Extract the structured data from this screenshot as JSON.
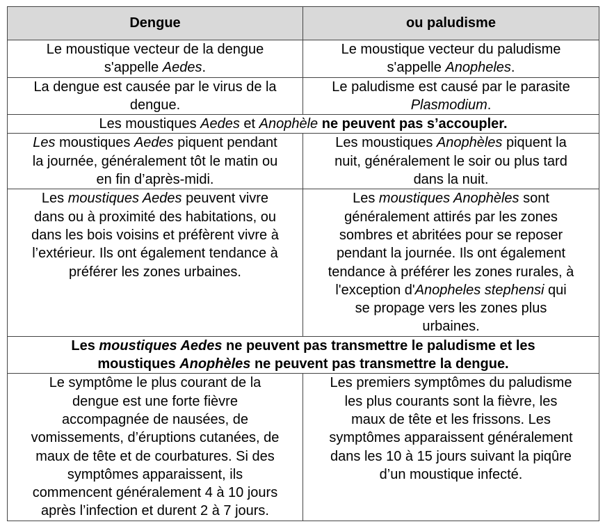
{
  "header": {
    "col1": "Dengue",
    "col2": "ou paludisme"
  },
  "rows": [
    {
      "type": "pair",
      "left": [
        [
          {
            "t": "Le moustique vecteur de la dengue"
          }
        ],
        [
          {
            "t": "s'appelle "
          },
          {
            "t": "Aedes",
            "s": "i"
          },
          {
            "t": "."
          }
        ]
      ],
      "right": [
        [
          {
            "t": "Le moustique vecteur du paludisme"
          }
        ],
        [
          {
            "t": "s'appelle "
          },
          {
            "t": "Anopheles",
            "s": "i"
          },
          {
            "t": "."
          }
        ]
      ]
    },
    {
      "type": "pair",
      "left": [
        [
          {
            "t": "La dengue est causée par le virus de la"
          }
        ],
        [
          {
            "t": "dengue."
          }
        ]
      ],
      "right": [
        [
          {
            "t": "Le paludisme est causé par le parasite"
          }
        ],
        [
          {
            "t": "Plasmodium",
            "s": "i"
          },
          {
            "t": "."
          }
        ]
      ]
    },
    {
      "type": "span",
      "content": [
        [
          {
            "t": "Les moustiques "
          },
          {
            "t": "Aedes",
            "s": "i"
          },
          {
            "t": " et "
          },
          {
            "t": "Anophèle",
            "s": "i"
          },
          {
            "t": " ne peuvent pas s’accoupler.",
            "s": "b"
          }
        ]
      ]
    },
    {
      "type": "pair",
      "left": [
        [
          {
            "t": "Les",
            "s": "i"
          },
          {
            "t": " moustiques "
          },
          {
            "t": "Aedes",
            "s": "i"
          },
          {
            "t": " piquent pendant"
          }
        ],
        [
          {
            "t": "la journée, généralement tôt le matin ou"
          }
        ],
        [
          {
            "t": "en fin d’après-midi."
          }
        ]
      ],
      "right": [
        [
          {
            "t": "Les moustiques "
          },
          {
            "t": "Anophèles",
            "s": "i"
          },
          {
            "t": " piquent la"
          }
        ],
        [
          {
            "t": "nuit, généralement le soir ou plus tard"
          }
        ],
        [
          {
            "t": "dans la nuit."
          }
        ]
      ]
    },
    {
      "type": "pair",
      "left": [
        [
          {
            "t": "Les "
          },
          {
            "t": "moustiques Aedes",
            "s": "i"
          },
          {
            "t": " peuvent vivre"
          }
        ],
        [
          {
            "t": "dans ou à proximité des habitations, ou"
          }
        ],
        [
          {
            "t": "dans les bois voisins et préfèrent vivre à"
          }
        ],
        [
          {
            "t": "l’extérieur. Ils ont également tendance à"
          }
        ],
        [
          {
            "t": "préférer les zones urbaines."
          }
        ]
      ],
      "right": [
        [
          {
            "t": "Les "
          },
          {
            "t": "moustiques Anophèles",
            "s": "i"
          },
          {
            "t": " sont"
          }
        ],
        [
          {
            "t": "généralement attirés par les zones"
          }
        ],
        [
          {
            "t": "sombres et abritées pour se reposer"
          }
        ],
        [
          {
            "t": "pendant la journée. Ils ont également"
          }
        ],
        [
          {
            "t": "tendance à préférer les zones rurales, à"
          }
        ],
        [
          {
            "t": "l'exception d'"
          },
          {
            "t": "Anopheles stephensi",
            "s": "i"
          },
          {
            "t": " qui"
          }
        ],
        [
          {
            "t": "se propage vers les zones plus"
          }
        ],
        [
          {
            "t": "urbaines."
          }
        ]
      ]
    },
    {
      "type": "span",
      "content": [
        [
          {
            "t": "Les ",
            "s": "b"
          },
          {
            "t": "moustiques Aedes",
            "s": "bi"
          },
          {
            "t": " ne peuvent pas transmettre le paludisme et les",
            "s": "b"
          }
        ],
        [
          {
            "t": "moustiques ",
            "s": "b"
          },
          {
            "t": "Anophèles",
            "s": "bi"
          },
          {
            "t": " ne peuvent pas transmettre la dengue.",
            "s": "b"
          }
        ]
      ]
    },
    {
      "type": "pair",
      "left": [
        [
          {
            "t": "Le symptôme le plus courant de la"
          }
        ],
        [
          {
            "t": "dengue est une forte fièvre"
          }
        ],
        [
          {
            "t": "accompagnée de nausées, de"
          }
        ],
        [
          {
            "t": "vomissements, d’éruptions cutanées, de"
          }
        ],
        [
          {
            "t": "maux de tête et de courbatures. Si des"
          }
        ],
        [
          {
            "t": "symptômes apparaissent, ils"
          }
        ],
        [
          {
            "t": "commencent généralement 4 à 10 jours"
          }
        ],
        [
          {
            "t": "après l’infection et durent 2 à 7 jours."
          }
        ]
      ],
      "right": [
        [
          {
            "t": "Les premiers symptômes du paludisme"
          }
        ],
        [
          {
            "t": "les plus courants sont la fièvre, les"
          }
        ],
        [
          {
            "t": "maux de tête et les frissons. Les"
          }
        ],
        [
          {
            "t": "symptômes apparaissent généralement"
          }
        ],
        [
          {
            "t": "dans les 10 à 15 jours suivant la piqûre"
          }
        ],
        [
          {
            "t": "d’un moustique infecté."
          }
        ]
      ]
    }
  ]
}
